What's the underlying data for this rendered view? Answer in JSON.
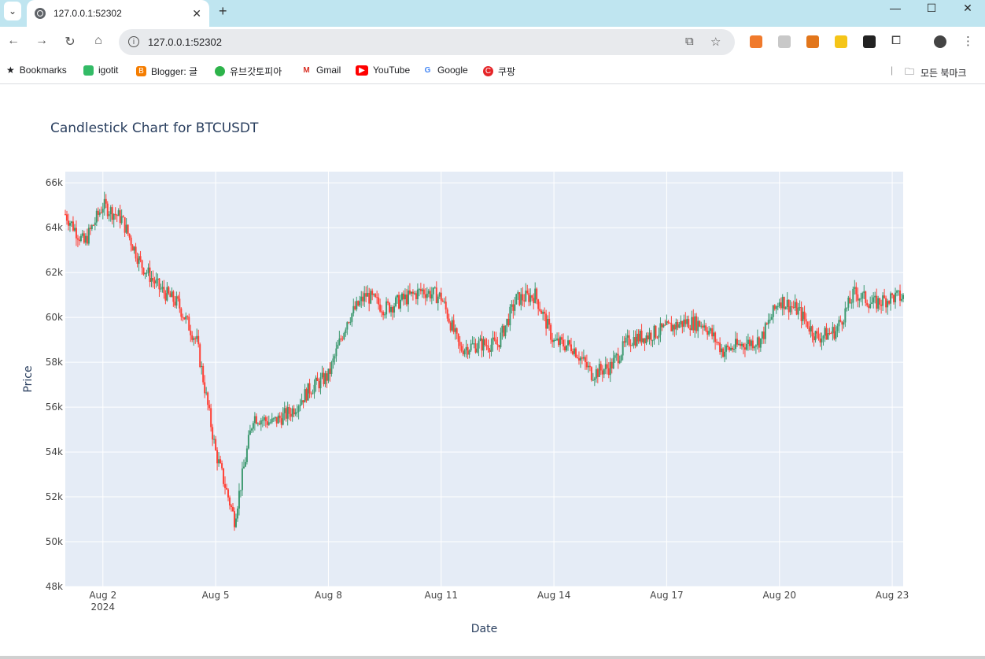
{
  "browser": {
    "tab_title": "127.0.0.1:52302",
    "url": "127.0.0.1:52302",
    "bookmarks": [
      "Bookmarks",
      "igotit",
      "Blogger: 글",
      "유브갓토피아",
      "Gmail",
      "YouTube",
      "Google",
      "쿠팡"
    ],
    "all_bookmarks": "모든 북마크"
  },
  "chart_data": {
    "type": "candlestick",
    "title": "Candlestick Chart for BTCUSDT",
    "xlabel": "Date",
    "ylabel": "Price",
    "x_ticks": [
      "Aug 2",
      "Aug 5",
      "Aug 8",
      "Aug 11",
      "Aug 14",
      "Aug 17",
      "Aug 20",
      "Aug 23"
    ],
    "x_tick_year": "2024",
    "y_ticks": [
      "48k",
      "50k",
      "52k",
      "54k",
      "56k",
      "58k",
      "60k",
      "62k",
      "64k",
      "66k"
    ],
    "xlim": [
      "2024-08-01 00:00",
      "2024-08-23 07:00"
    ],
    "ylim": [
      48000,
      66500
    ],
    "grid": true,
    "colors": {
      "up": "#3d9970",
      "down": "#ff4136",
      "plot_bg": "#e5ecf6",
      "grid": "#ffffff",
      "text": "#2a3f5f"
    },
    "series": [
      {
        "name": "BTCUSDT",
        "x": [
          "2024-08-01",
          "2024-08-01 12:00",
          "2024-08-02",
          "2024-08-02 12:00",
          "2024-08-03",
          "2024-08-03 12:00",
          "2024-08-04",
          "2024-08-04 12:00",
          "2024-08-05",
          "2024-08-05 12:00",
          "2024-08-06",
          "2024-08-06 12:00",
          "2024-08-07",
          "2024-08-07 12:00",
          "2024-08-08",
          "2024-08-08 12:00",
          "2024-08-09",
          "2024-08-09 12:00",
          "2024-08-10",
          "2024-08-10 12:00",
          "2024-08-11",
          "2024-08-11 12:00",
          "2024-08-12",
          "2024-08-12 12:00",
          "2024-08-13",
          "2024-08-13 12:00",
          "2024-08-14",
          "2024-08-14 12:00",
          "2024-08-15",
          "2024-08-15 12:00",
          "2024-08-16",
          "2024-08-16 12:00",
          "2024-08-17",
          "2024-08-17 12:00",
          "2024-08-18",
          "2024-08-18 12:00",
          "2024-08-19",
          "2024-08-19 12:00",
          "2024-08-20",
          "2024-08-20 12:00",
          "2024-08-21",
          "2024-08-21 12:00",
          "2024-08-22",
          "2024-08-22 12:00",
          "2024-08-23"
        ],
        "close": [
          64600,
          63300,
          65000,
          64400,
          62400,
          61300,
          60600,
          58900,
          54000,
          51000,
          55600,
          55300,
          55800,
          56800,
          57400,
          59900,
          61000,
          60400,
          60800,
          61200,
          60900,
          58600,
          58800,
          58800,
          60800,
          61000,
          58900,
          58700,
          57500,
          57800,
          59000,
          59200,
          59500,
          59800,
          59700,
          58500,
          58800,
          59000,
          60800,
          60300,
          59100,
          59400,
          61100,
          60600,
          60900
        ]
      }
    ]
  }
}
